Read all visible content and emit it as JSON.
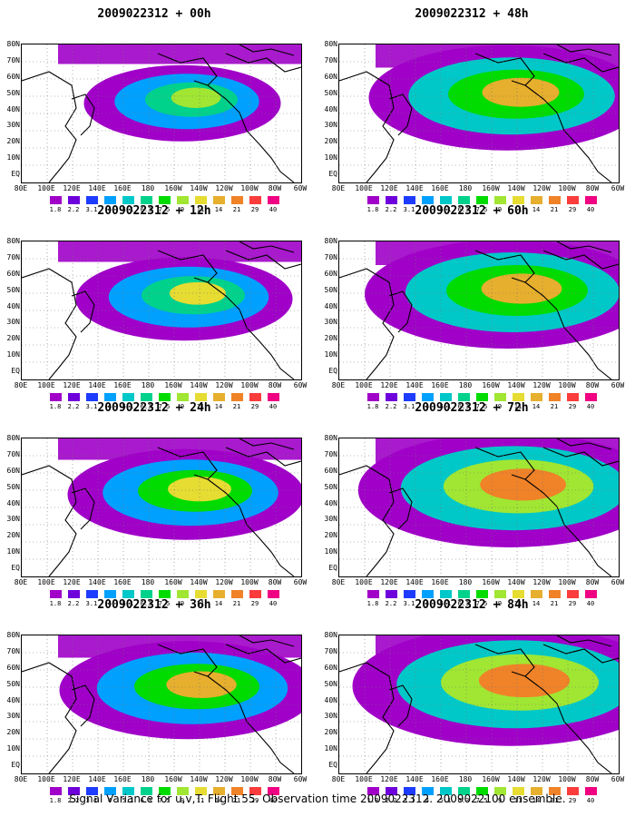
{
  "panels": [
    {
      "title": "2009022312 + 00h",
      "intensity": 0.35
    },
    {
      "title": "2009022312 + 48h",
      "intensity": 0.75
    },
    {
      "title": "2009022312 + 12h",
      "intensity": 0.45
    },
    {
      "title": "2009022312 + 60h",
      "intensity": 0.8
    },
    {
      "title": "2009022312 + 24h",
      "intensity": 0.55
    },
    {
      "title": "2009022312 + 72h",
      "intensity": 0.88
    },
    {
      "title": "2009022312 + 36h",
      "intensity": 0.65
    },
    {
      "title": "2009022312 + 84h",
      "intensity": 0.95
    }
  ],
  "lat_labels": [
    "80N",
    "70N",
    "60N",
    "50N",
    "40N",
    "30N",
    "20N",
    "10N",
    "EQ"
  ],
  "lon_labels": [
    "80E",
    "100E",
    "120E",
    "140E",
    "160E",
    "180",
    "160W",
    "140W",
    "120W",
    "100W",
    "80W",
    "60W"
  ],
  "colorbar": {
    "colors": [
      "#a000c8",
      "#6e00dc",
      "#1e3cff",
      "#00a0ff",
      "#00c8c8",
      "#00d28c",
      "#00dc00",
      "#a0e632",
      "#e6dc32",
      "#e6af2d",
      "#f08228",
      "#fa3c3c",
      "#f00082"
    ],
    "labels": [
      "1.8",
      "2.2",
      "3.1",
      "4",
      "5.1",
      "6.3",
      "7.5",
      "9",
      "11",
      "14",
      "21",
      "29",
      "40"
    ]
  },
  "footer": "Signal Variance for u,v,T. Flight 55. Observation time 2009022312. 2009022100 ensemble."
}
